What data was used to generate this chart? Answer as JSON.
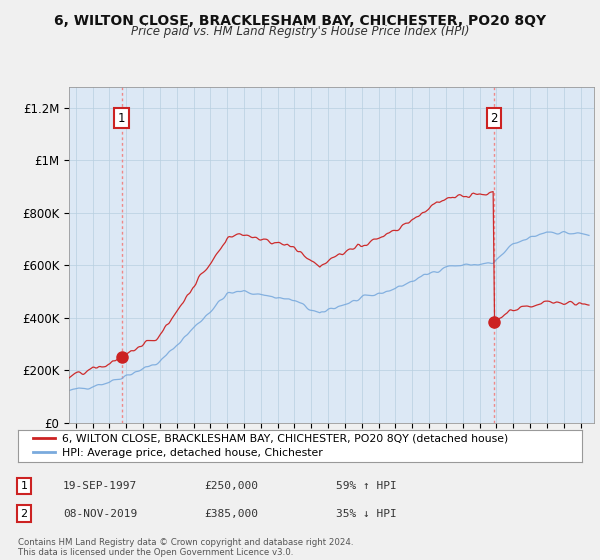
{
  "title1": "6, WILTON CLOSE, BRACKLESHAM BAY, CHICHESTER, PO20 8QY",
  "title2": "Price paid vs. HM Land Registry's House Price Index (HPI)",
  "ylabel_ticks": [
    "£0",
    "£200K",
    "£400K",
    "£600K",
    "£800K",
    "£1M",
    "£1.2M"
  ],
  "ylabel_values": [
    0,
    200000,
    400000,
    600000,
    800000,
    1000000,
    1200000
  ],
  "ylim": [
    0,
    1280000
  ],
  "xlim_start": 1994.6,
  "xlim_end": 2025.8,
  "sale1_x": 1997.72,
  "sale1_y": 250000,
  "sale2_x": 2019.85,
  "sale2_y": 385000,
  "hpi_color": "#7aaadd",
  "price_color": "#cc2222",
  "dashed_color": "#ee8888",
  "legend_label1": "6, WILTON CLOSE, BRACKLESHAM BAY, CHICHESTER, PO20 8QY (detached house)",
  "legend_label2": "HPI: Average price, detached house, Chichester",
  "annotation1_date": "19-SEP-1997",
  "annotation1_price": "£250,000",
  "annotation1_hpi": "59% ↑ HPI",
  "annotation2_date": "08-NOV-2019",
  "annotation2_price": "£385,000",
  "annotation2_hpi": "35% ↓ HPI",
  "footer": "Contains HM Land Registry data © Crown copyright and database right 2024.\nThis data is licensed under the Open Government Licence v3.0.",
  "bg_color": "#f0f0f0",
  "plot_bg_color": "#dce8f5"
}
